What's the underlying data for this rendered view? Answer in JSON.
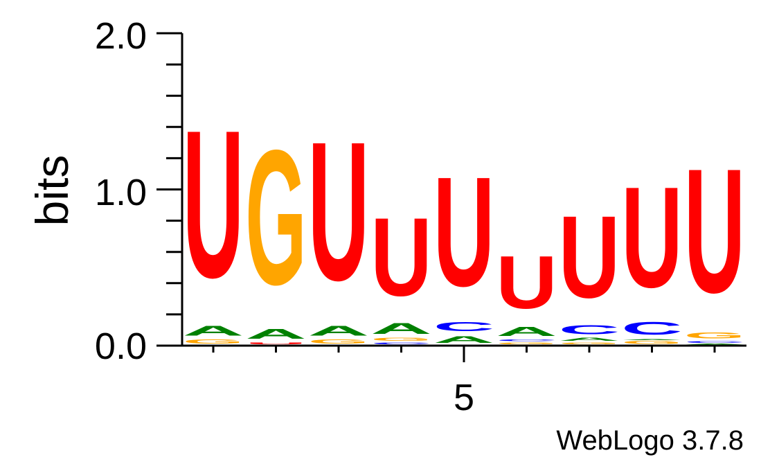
{
  "chart_data": {
    "type": "sequence-logo",
    "ylabel": "bits",
    "ylim": [
      0,
      2
    ],
    "yticks": [
      "0.0",
      "1.0",
      "2.0"
    ],
    "xtick_label": "5",
    "xtick_position": 5,
    "credit": "WebLogo 3.7.8",
    "colors": {
      "U": "#ff0000",
      "G": "#ffa500",
      "A": "#008000",
      "C": "#0000ff"
    },
    "positions": [
      {
        "position": 1,
        "stack": [
          {
            "letter": "G",
            "bits": 0.04
          },
          {
            "letter": "A",
            "bits": 0.1
          },
          {
            "letter": "U",
            "bits": 1.51
          }
        ]
      },
      {
        "position": 2,
        "stack": [
          {
            "letter": "U",
            "bits": 0.02
          },
          {
            "letter": "A",
            "bits": 0.1
          },
          {
            "letter": "G",
            "bits": 1.38
          }
        ]
      },
      {
        "position": 3,
        "stack": [
          {
            "letter": "G",
            "bits": 0.04
          },
          {
            "letter": "A",
            "bits": 0.1
          },
          {
            "letter": "U",
            "bits": 1.42
          }
        ]
      },
      {
        "position": 4,
        "stack": [
          {
            "letter": "C",
            "bits": 0.02
          },
          {
            "letter": "G",
            "bits": 0.03
          },
          {
            "letter": "A",
            "bits": 0.11
          },
          {
            "letter": "U",
            "bits": 0.8
          }
        ]
      },
      {
        "position": 5,
        "stack": [
          {
            "letter": "A",
            "bits": 0.07
          },
          {
            "letter": "C",
            "bits": 0.09
          },
          {
            "letter": "U",
            "bits": 1.12
          }
        ]
      },
      {
        "position": 6,
        "stack": [
          {
            "letter": "G",
            "bits": 0.02
          },
          {
            "letter": "C",
            "bits": 0.02
          },
          {
            "letter": "A",
            "bits": 0.09
          },
          {
            "letter": "U",
            "bits": 0.54
          }
        ]
      },
      {
        "position": 7,
        "stack": [
          {
            "letter": "G",
            "bits": 0.02
          },
          {
            "letter": "A",
            "bits": 0.03
          },
          {
            "letter": "C",
            "bits": 0.09
          },
          {
            "letter": "U",
            "bits": 0.84
          }
        ]
      },
      {
        "position": 8,
        "stack": [
          {
            "letter": "G",
            "bits": 0.03
          },
          {
            "letter": "A",
            "bits": 0.01
          },
          {
            "letter": "C",
            "bits": 0.13
          },
          {
            "letter": "U",
            "bits": 1.03
          }
        ]
      },
      {
        "position": 9,
        "stack": [
          {
            "letter": "A",
            "bits": 0.01
          },
          {
            "letter": "C",
            "bits": 0.02
          },
          {
            "letter": "G",
            "bits": 0.06
          },
          {
            "letter": "U",
            "bits": 1.27
          }
        ]
      }
    ]
  }
}
